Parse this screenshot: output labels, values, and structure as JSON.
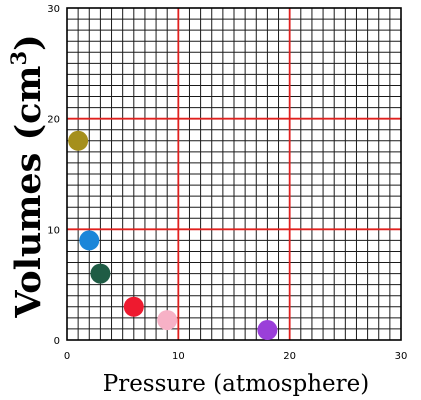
{
  "chart_data": {
    "type": "scatter",
    "xlabel": "Pressure (atmosphere)",
    "ylabel_main": "Volumes (cm",
    "ylabel_sup": "3",
    "ylabel_close": ")",
    "xlim": [
      0,
      30
    ],
    "ylim": [
      0,
      30
    ],
    "x_ticks": [
      0,
      10,
      20,
      30
    ],
    "y_ticks": [
      0,
      10,
      20,
      30
    ],
    "minor_step": 1,
    "grid": true,
    "colors": {
      "minor_grid": "#1a1a1a",
      "major_grid": "#e0201e",
      "axis": "#000000"
    },
    "points": [
      {
        "x": 1,
        "y": 18,
        "color": "#a58f1c"
      },
      {
        "x": 2,
        "y": 9,
        "color": "#1a86d9"
      },
      {
        "x": 3,
        "y": 6,
        "color": "#1f5c45"
      },
      {
        "x": 6,
        "y": 3,
        "color": "#ee1a2f"
      },
      {
        "x": 9,
        "y": 1.8,
        "color": "#f7b1c6"
      },
      {
        "x": 18,
        "y": 0.9,
        "color": "#9a3fd9"
      }
    ]
  }
}
